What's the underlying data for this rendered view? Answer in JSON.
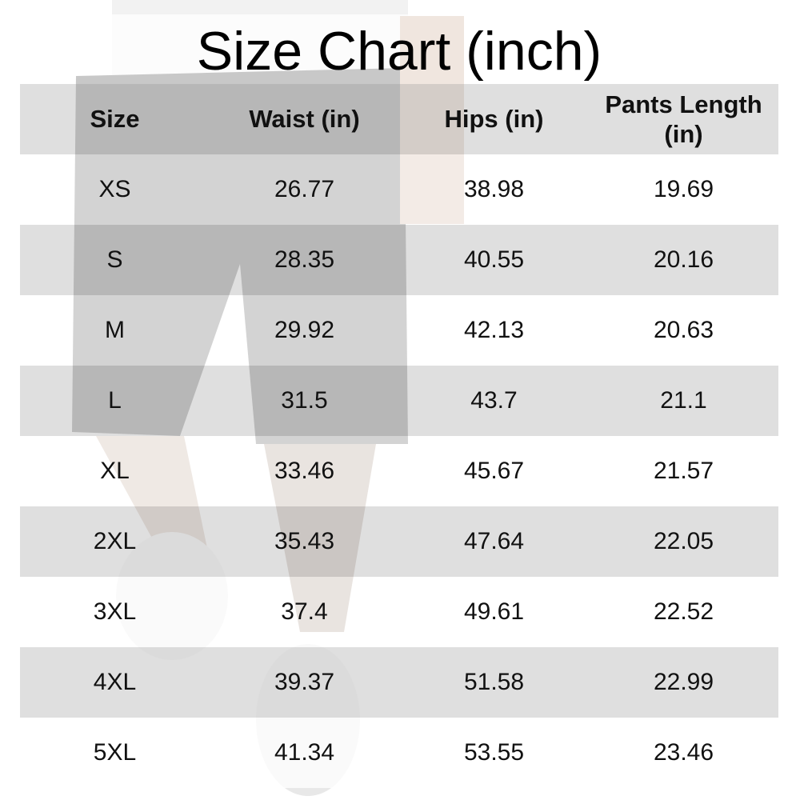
{
  "title": "Size Chart (inch)",
  "table": {
    "header": [
      "Size",
      "Waist (in)",
      "Hips (in)",
      "Pants Length (in)"
    ],
    "rows": [
      [
        "XS",
        "26.77",
        "38.98",
        "19.69"
      ],
      [
        "S",
        "28.35",
        "40.55",
        "20.16"
      ],
      [
        "M",
        "29.92",
        "42.13",
        "20.63"
      ],
      [
        "L",
        "31.5",
        "43.7",
        "21.1"
      ],
      [
        "XL",
        "33.46",
        "45.67",
        "21.57"
      ],
      [
        "2XL",
        "35.43",
        "47.64",
        "22.05"
      ],
      [
        "3XL",
        "37.4",
        "49.61",
        "22.52"
      ],
      [
        "4XL",
        "39.37",
        "51.58",
        "22.99"
      ],
      [
        "5XL",
        "41.34",
        "53.55",
        "23.46"
      ]
    ]
  }
}
